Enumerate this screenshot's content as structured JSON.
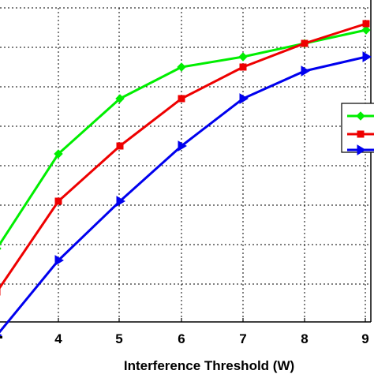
{
  "chart_data": {
    "type": "line",
    "xlabel": "Interference Threshold (W)",
    "ylabel": "",
    "x_ticks": [
      "4",
      "5",
      "6",
      "7",
      "8",
      "9"
    ],
    "grid": true,
    "legend_position": "right",
    "series": [
      {
        "color": "#00ee00",
        "marker": "diamond",
        "x": [
          3,
          4,
          5,
          6,
          7,
          8,
          9
        ],
        "y": [
          -0.05,
          1.15,
          1.85,
          2.25,
          2.38,
          2.55,
          2.72
        ]
      },
      {
        "color": "#ee0000",
        "marker": "square",
        "x": [
          3,
          4,
          5,
          6,
          7,
          8,
          9
        ],
        "y": [
          -0.6,
          0.55,
          1.25,
          1.85,
          2.25,
          2.55,
          2.8
        ]
      },
      {
        "color": "#0000ee",
        "marker": "triangle-right",
        "x": [
          3,
          4,
          5,
          6,
          7,
          8,
          9
        ],
        "y": [
          -1.15,
          -0.2,
          0.55,
          1.25,
          1.85,
          2.2,
          2.38
        ]
      }
    ]
  }
}
